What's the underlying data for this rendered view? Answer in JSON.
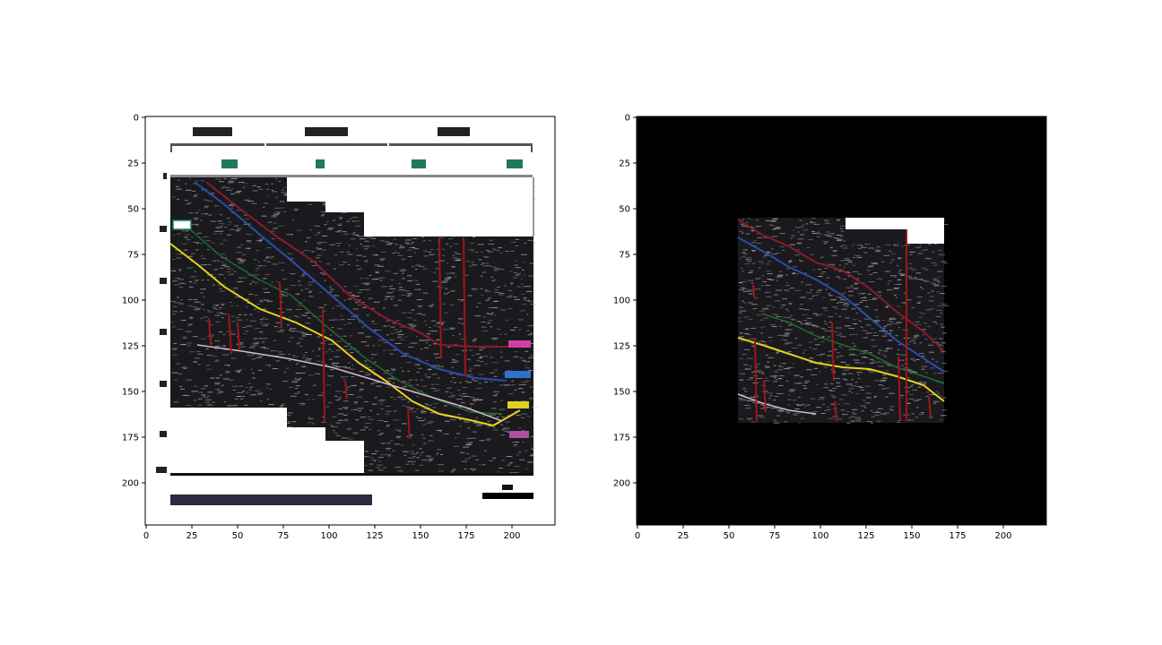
{
  "panels": [
    {
      "id": "left",
      "x_ticks": [
        "0",
        "25",
        "50",
        "75",
        "100",
        "125",
        "150",
        "175",
        "200"
      ],
      "y_ticks": [
        "0",
        "25",
        "50",
        "75",
        "100",
        "125",
        "150",
        "175",
        "200"
      ],
      "image_kind": "seismic-section-with-header-and-interpretation"
    },
    {
      "id": "right",
      "x_ticks": [
        "0",
        "25",
        "50",
        "75",
        "100",
        "125",
        "150",
        "175",
        "200"
      ],
      "y_ticks": [
        "0",
        "25",
        "50",
        "75",
        "100",
        "125",
        "150",
        "175",
        "200"
      ],
      "image_kind": "cropped-seismic-section-on-black"
    }
  ],
  "colors": {
    "horizon_red": "#8b1a2b",
    "horizon_blue": "#2a4db0",
    "horizon_green": "#1f6b2a",
    "horizon_yellow": "#e8d21c",
    "horizon_pink": "#d8b8d0",
    "fault_red": "#a01515",
    "panel_black": "#000000"
  }
}
